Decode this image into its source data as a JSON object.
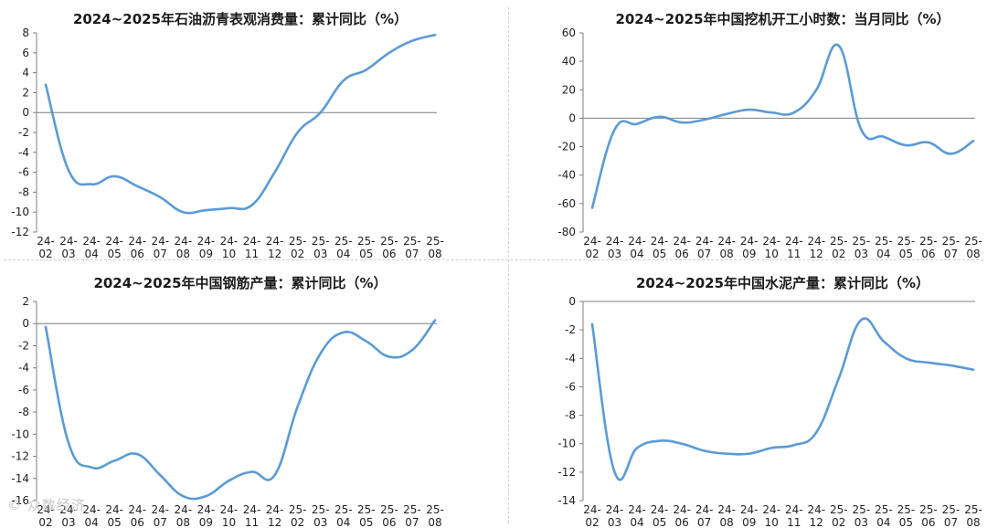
{
  "watermark": "© 众数经济",
  "chart_data": [
    {
      "type": "line",
      "title": "2024~2025年石油沥青表观消费量：累计同比（%）",
      "categories": [
        "24-02",
        "24-03",
        "24-04",
        "24-05",
        "24-06",
        "24-07",
        "24-08",
        "24-09",
        "24-10",
        "24-11",
        "24-12",
        "25-02",
        "25-03",
        "25-04",
        "25-05",
        "25-06",
        "25-07",
        "25-08"
      ],
      "values": [
        2.8,
        -5.8,
        -7.2,
        -6.4,
        -7.4,
        -8.5,
        -10.0,
        -9.8,
        -9.6,
        -9.3,
        -6.0,
        -2.0,
        0.0,
        3.2,
        4.3,
        6.0,
        7.2,
        7.8
      ],
      "ylim": [
        -12,
        8
      ],
      "yticks": [
        8,
        6,
        4,
        2,
        0,
        -2,
        -4,
        -6,
        -8,
        -10,
        -12
      ],
      "color": "#5b9bd5"
    },
    {
      "type": "line",
      "title": "2024~2025年中国挖机开工小时数：当月同比（%）",
      "categories": [
        "24-02",
        "24-03",
        "24-04",
        "24-05",
        "24-06",
        "24-07",
        "24-08",
        "24-09",
        "24-10",
        "24-11",
        "24-12",
        "25-02",
        "25-03",
        "25-04",
        "25-05",
        "25-06",
        "25-07",
        "25-08"
      ],
      "values": [
        -63,
        -8,
        -4,
        1,
        -3,
        -1,
        3,
        6,
        4,
        4,
        20,
        51,
        -8,
        -13,
        -19,
        -17,
        -25,
        -16
      ],
      "ylim": [
        -80,
        60
      ],
      "yticks": [
        60,
        40,
        20,
        0,
        -20,
        -40,
        -60,
        -80
      ],
      "color": "#5b9bd5"
    },
    {
      "type": "line",
      "title": "2024~2025年中国钢筋产量：累计同比（%）",
      "categories": [
        "24-02",
        "24-03",
        "24-04",
        "24-05",
        "24-06",
        "24-07",
        "24-08",
        "24-09",
        "24-10",
        "24-11",
        "24-12",
        "25-02",
        "25-03",
        "25-04",
        "25-05",
        "25-06",
        "25-07",
        "25-08"
      ],
      "values": [
        -0.3,
        -10.8,
        -13.0,
        -12.4,
        -11.8,
        -13.7,
        -15.6,
        -15.6,
        -14.2,
        -13.4,
        -13.7,
        -7.5,
        -2.7,
        -0.8,
        -1.6,
        -3.0,
        -2.4,
        0.3
      ],
      "ylim": [
        -16,
        2
      ],
      "yticks": [
        2,
        0,
        -2,
        -4,
        -6,
        -8,
        -10,
        -12,
        -14,
        -16
      ],
      "color": "#5b9bd5"
    },
    {
      "type": "line",
      "title": "2024~2025年中国水泥产量：累计同比（%）",
      "categories": [
        "24-02",
        "24-03",
        "24-04",
        "24-05",
        "24-06",
        "24-07",
        "24-08",
        "24-09",
        "24-10",
        "24-11",
        "24-12",
        "25-02",
        "25-03",
        "25-04",
        "25-05",
        "25-06",
        "25-07",
        "25-08"
      ],
      "values": [
        -1.6,
        -12.0,
        -10.3,
        -9.8,
        -10.0,
        -10.5,
        -10.7,
        -10.7,
        -10.3,
        -10.1,
        -9.2,
        -5.4,
        -1.3,
        -2.8,
        -4.0,
        -4.3,
        -4.5,
        -4.8
      ],
      "ylim": [
        -14,
        0
      ],
      "yticks": [
        0,
        -2,
        -4,
        -6,
        -8,
        -10,
        -12,
        -14
      ],
      "color": "#5b9bd5"
    }
  ]
}
